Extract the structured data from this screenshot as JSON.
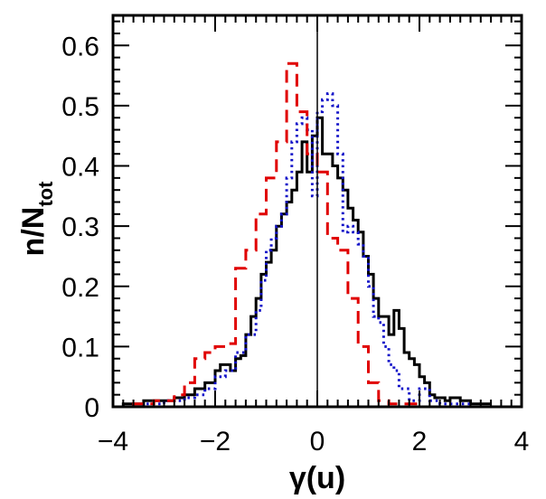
{
  "chart_data": {
    "type": "histogram",
    "xlabel": "γ(u)",
    "ylabel": {
      "main": "n/N",
      "sub": "tot"
    },
    "xlim": [
      -4,
      4
    ],
    "ylim": [
      0,
      0.65
    ],
    "x_ticks": [
      -4,
      -2,
      0,
      2,
      4
    ],
    "x_tick_labels": [
      "−4",
      "−2",
      "0",
      "2",
      "4"
    ],
    "y_ticks": [
      0,
      0.1,
      0.2,
      0.3,
      0.4,
      0.5,
      0.6
    ],
    "y_tick_labels": [
      "0",
      "0.1",
      "0.2",
      "0.3",
      "0.4",
      "0.5",
      "0.6"
    ],
    "reference_line_x": 0,
    "series": [
      {
        "style": "solid",
        "color": "#000000",
        "edges": [
          -3.8,
          -3.6,
          -3.4,
          -3.2,
          -3.0,
          -2.8,
          -2.6,
          -2.4,
          -2.2,
          -2.0,
          -1.9,
          -1.8,
          -1.7,
          -1.6,
          -1.5,
          -1.4,
          -1.3,
          -1.2,
          -1.1,
          -1.0,
          -0.9,
          -0.8,
          -0.7,
          -0.6,
          -0.5,
          -0.4,
          -0.3,
          -0.2,
          -0.1,
          0.0,
          0.1,
          0.2,
          0.3,
          0.4,
          0.5,
          0.6,
          0.7,
          0.8,
          0.9,
          1.0,
          1.1,
          1.2,
          1.3,
          1.4,
          1.5,
          1.6,
          1.7,
          1.8,
          1.9,
          2.0,
          2.1,
          2.2,
          2.3,
          2.4,
          2.5,
          2.6,
          2.8,
          3.0,
          3.2,
          3.4
        ],
        "values": [
          0.005,
          0.005,
          0.01,
          0.01,
          0.01,
          0.015,
          0.02,
          0.03,
          0.04,
          0.06,
          0.07,
          0.07,
          0.06,
          0.08,
          0.085,
          0.12,
          0.15,
          0.18,
          0.22,
          0.24,
          0.26,
          0.3,
          0.32,
          0.34,
          0.36,
          0.39,
          0.44,
          0.39,
          0.45,
          0.48,
          0.42,
          0.42,
          0.4,
          0.38,
          0.36,
          0.33,
          0.31,
          0.29,
          0.25,
          0.22,
          0.18,
          0.15,
          0.15,
          0.12,
          0.16,
          0.13,
          0.09,
          0.08,
          0.07,
          0.05,
          0.04,
          0.02,
          0.015,
          0.015,
          0.01,
          0.015,
          0.01,
          0.005,
          0.005
        ]
      },
      {
        "style": "dotted",
        "color": "#1010c8",
        "edges": [
          -3.4,
          -3.0,
          -2.6,
          -2.4,
          -2.2,
          -2.0,
          -1.8,
          -1.6,
          -1.4,
          -1.2,
          -1.1,
          -1.0,
          -0.9,
          -0.8,
          -0.7,
          -0.6,
          -0.5,
          -0.4,
          -0.3,
          -0.2,
          -0.1,
          0.0,
          0.1,
          0.2,
          0.3,
          0.4,
          0.5,
          0.6,
          0.7,
          0.8,
          0.9,
          1.0,
          1.1,
          1.2,
          1.3,
          1.4,
          1.5,
          1.6,
          1.8,
          2.0,
          2.2,
          2.4,
          2.6,
          3.0
        ],
        "values": [
          0.005,
          0.01,
          0.015,
          0.02,
          0.03,
          0.05,
          0.06,
          0.09,
          0.12,
          0.16,
          0.21,
          0.26,
          0.28,
          0.3,
          0.32,
          0.38,
          0.44,
          0.47,
          0.48,
          0.46,
          0.35,
          0.49,
          0.51,
          0.52,
          0.5,
          0.42,
          0.29,
          0.3,
          0.29,
          0.27,
          0.25,
          0.2,
          0.15,
          0.14,
          0.1,
          0.07,
          0.06,
          0.03,
          0.01,
          0.03,
          0.01,
          0.005,
          0.005
        ]
      },
      {
        "style": "dashed",
        "color": "#e00000",
        "edges": [
          -3.6,
          -3.2,
          -2.8,
          -2.6,
          -2.4,
          -2.2,
          -2.0,
          -1.8,
          -1.6,
          -1.4,
          -1.2,
          -1.0,
          -0.8,
          -0.6,
          -0.4,
          -0.2,
          0.0,
          0.2,
          0.4,
          0.6,
          0.8,
          1.0,
          1.2,
          1.4,
          1.6,
          2.0,
          2.4
        ],
        "values": [
          0.005,
          0.01,
          0.02,
          0.04,
          0.08,
          0.09,
          0.1,
          0.105,
          0.23,
          0.26,
          0.32,
          0.38,
          0.44,
          0.57,
          0.49,
          0.42,
          0.39,
          0.28,
          0.26,
          0.18,
          0.1,
          0.04,
          0.01,
          0.005,
          0.005,
          0.0
        ]
      }
    ]
  }
}
